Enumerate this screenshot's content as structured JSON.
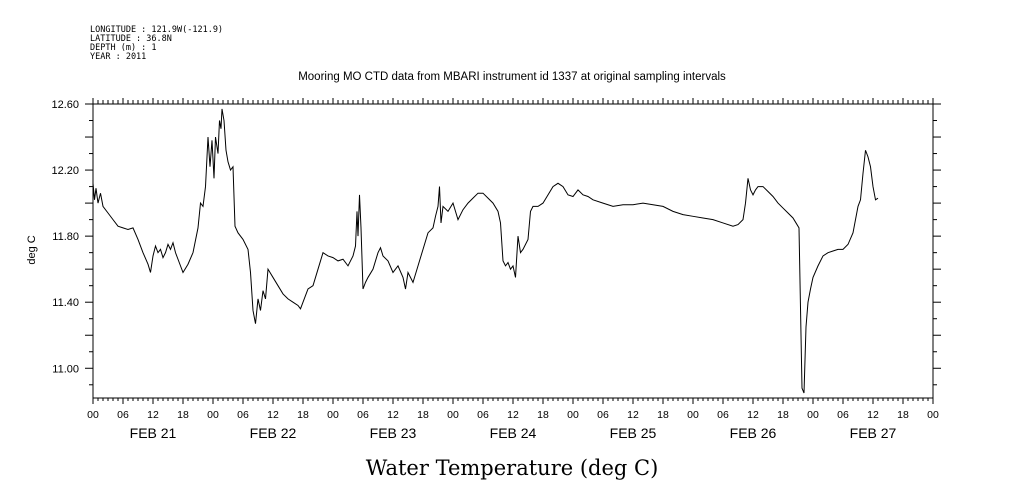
{
  "header_info": [
    "LONGITUDE : 121.9W(-121.9)",
    "LATITUDE : 36.8N",
    "DEPTH (m) : 1",
    "YEAR : 2011"
  ],
  "chart_data": {
    "type": "line",
    "title": "Mooring MO CTD data from MBARI instrument id 1337 at original sampling intervals",
    "xlabel": "Water Temperature (deg C)",
    "ylabel": "deg C",
    "ylim": [
      10.82,
      12.6
    ],
    "xlim_hours": [
      0,
      168
    ],
    "grid": false,
    "yticks": [
      "11.00",
      "11.40",
      "11.80",
      "12.20",
      "12.60"
    ],
    "hour_ticks": [
      "00",
      "06",
      "12",
      "18",
      "00",
      "06",
      "12",
      "18",
      "00",
      "06",
      "12",
      "18",
      "00",
      "06",
      "12",
      "18",
      "00",
      "06",
      "12",
      "18",
      "00",
      "06",
      "12",
      "18",
      "00",
      "06",
      "12",
      "18",
      "00"
    ],
    "day_labels": [
      "FEB 21",
      "FEB 22",
      "FEB 23",
      "FEB 24",
      "FEB 25",
      "FEB 26",
      "FEB 27"
    ],
    "series": [
      {
        "points": [
          [
            0.0,
            12.12
          ],
          [
            0.3,
            12.02
          ],
          [
            0.6,
            12.09
          ],
          [
            1.0,
            12.0
          ],
          [
            1.5,
            12.06
          ],
          [
            2.0,
            11.98
          ],
          [
            3.0,
            11.94
          ],
          [
            4.0,
            11.9
          ],
          [
            5.0,
            11.86
          ],
          [
            6.0,
            11.85
          ],
          [
            7.0,
            11.84
          ],
          [
            8.0,
            11.85
          ],
          [
            9.0,
            11.78
          ],
          [
            10.0,
            11.7
          ],
          [
            11.0,
            11.63
          ],
          [
            11.5,
            11.58
          ],
          [
            12.0,
            11.68
          ],
          [
            12.5,
            11.74
          ],
          [
            13.0,
            11.7
          ],
          [
            13.5,
            11.72
          ],
          [
            14.0,
            11.67
          ],
          [
            14.5,
            11.7
          ],
          [
            15.0,
            11.75
          ],
          [
            15.5,
            11.72
          ],
          [
            16.0,
            11.76
          ],
          [
            16.5,
            11.7
          ],
          [
            17.0,
            11.66
          ],
          [
            17.5,
            11.62
          ],
          [
            18.0,
            11.58
          ],
          [
            19.0,
            11.63
          ],
          [
            20.0,
            11.7
          ],
          [
            21.0,
            11.85
          ],
          [
            21.5,
            12.0
          ],
          [
            22.0,
            11.98
          ],
          [
            22.5,
            12.1
          ],
          [
            23.0,
            12.4
          ],
          [
            23.4,
            12.22
          ],
          [
            23.8,
            12.38
          ],
          [
            24.2,
            12.15
          ],
          [
            24.5,
            12.4
          ],
          [
            25.0,
            12.3
          ],
          [
            25.3,
            12.5
          ],
          [
            25.6,
            12.45
          ],
          [
            25.8,
            12.57
          ],
          [
            26.2,
            12.5
          ],
          [
            26.6,
            12.32
          ],
          [
            27.0,
            12.25
          ],
          [
            27.5,
            12.2
          ],
          [
            28.0,
            12.22
          ],
          [
            28.4,
            11.86
          ],
          [
            29.0,
            11.82
          ],
          [
            30.0,
            11.78
          ],
          [
            31.0,
            11.72
          ],
          [
            31.5,
            11.58
          ],
          [
            32.0,
            11.35
          ],
          [
            32.5,
            11.27
          ],
          [
            33.0,
            11.42
          ],
          [
            33.5,
            11.35
          ],
          [
            34.0,
            11.47
          ],
          [
            34.5,
            11.42
          ],
          [
            35.0,
            11.6
          ],
          [
            36.0,
            11.55
          ],
          [
            37.0,
            11.5
          ],
          [
            38.0,
            11.45
          ],
          [
            39.0,
            11.42
          ],
          [
            40.0,
            11.4
          ],
          [
            41.0,
            11.38
          ],
          [
            41.5,
            11.36
          ],
          [
            42.0,
            11.4
          ],
          [
            43.0,
            11.48
          ],
          [
            44.0,
            11.5
          ],
          [
            45.0,
            11.6
          ],
          [
            46.0,
            11.7
          ],
          [
            47.0,
            11.68
          ],
          [
            48.0,
            11.67
          ],
          [
            49.0,
            11.65
          ],
          [
            50.0,
            11.66
          ],
          [
            51.0,
            11.62
          ],
          [
            52.0,
            11.68
          ],
          [
            52.5,
            11.74
          ],
          [
            52.8,
            11.95
          ],
          [
            53.0,
            11.8
          ],
          [
            53.3,
            12.05
          ],
          [
            53.6,
            11.85
          ],
          [
            54.0,
            11.48
          ],
          [
            54.5,
            11.52
          ],
          [
            55.0,
            11.55
          ],
          [
            56.0,
            11.6
          ],
          [
            57.0,
            11.7
          ],
          [
            57.5,
            11.73
          ],
          [
            58.0,
            11.68
          ],
          [
            59.0,
            11.65
          ],
          [
            60.0,
            11.58
          ],
          [
            61.0,
            11.62
          ],
          [
            62.0,
            11.55
          ],
          [
            62.5,
            11.48
          ],
          [
            63.0,
            11.58
          ],
          [
            64.0,
            11.52
          ],
          [
            65.0,
            11.62
          ],
          [
            66.0,
            11.72
          ],
          [
            67.0,
            11.82
          ],
          [
            68.0,
            11.85
          ],
          [
            68.5,
            11.92
          ],
          [
            69.0,
            11.98
          ],
          [
            69.3,
            12.1
          ],
          [
            69.6,
            11.88
          ],
          [
            70.0,
            11.98
          ],
          [
            71.0,
            11.95
          ],
          [
            72.0,
            12.0
          ],
          [
            72.5,
            11.95
          ],
          [
            73.0,
            11.9
          ],
          [
            74.0,
            11.96
          ],
          [
            75.0,
            12.0
          ],
          [
            76.0,
            12.03
          ],
          [
            77.0,
            12.06
          ],
          [
            78.0,
            12.06
          ],
          [
            79.0,
            12.03
          ],
          [
            80.0,
            12.0
          ],
          [
            81.0,
            11.95
          ],
          [
            81.5,
            11.88
          ],
          [
            82.0,
            11.65
          ],
          [
            82.5,
            11.62
          ],
          [
            83.0,
            11.64
          ],
          [
            83.5,
            11.6
          ],
          [
            84.0,
            11.62
          ],
          [
            84.5,
            11.55
          ],
          [
            85.0,
            11.8
          ],
          [
            85.5,
            11.7
          ],
          [
            86.0,
            11.72
          ],
          [
            87.0,
            11.78
          ],
          [
            87.5,
            11.95
          ],
          [
            88.0,
            11.98
          ],
          [
            89.0,
            11.98
          ],
          [
            90.0,
            12.0
          ],
          [
            91.0,
            12.05
          ],
          [
            92.0,
            12.1
          ],
          [
            93.0,
            12.12
          ],
          [
            94.0,
            12.1
          ],
          [
            95.0,
            12.05
          ],
          [
            96.0,
            12.04
          ],
          [
            97.0,
            12.08
          ],
          [
            98.0,
            12.05
          ],
          [
            99.0,
            12.04
          ],
          [
            100.0,
            12.02
          ],
          [
            102.0,
            12.0
          ],
          [
            104.0,
            11.98
          ],
          [
            106.0,
            11.99
          ],
          [
            108.0,
            11.99
          ],
          [
            110.0,
            12.0
          ],
          [
            112.0,
            11.99
          ],
          [
            114.0,
            11.98
          ],
          [
            116.0,
            11.95
          ],
          [
            118.0,
            11.93
          ],
          [
            120.0,
            11.92
          ],
          [
            122.0,
            11.91
          ],
          [
            124.0,
            11.9
          ],
          [
            126.0,
            11.88
          ],
          [
            128.0,
            11.86
          ],
          [
            129.0,
            11.87
          ],
          [
            130.0,
            11.9
          ],
          [
            130.5,
            12.0
          ],
          [
            131.0,
            12.15
          ],
          [
            131.5,
            12.08
          ],
          [
            132.0,
            12.05
          ],
          [
            132.5,
            12.08
          ],
          [
            133.0,
            12.1
          ],
          [
            134.0,
            12.1
          ],
          [
            135.0,
            12.07
          ],
          [
            136.0,
            12.04
          ],
          [
            137.0,
            12.0
          ],
          [
            138.0,
            11.97
          ],
          [
            139.0,
            11.94
          ],
          [
            140.0,
            11.91
          ],
          [
            140.8,
            11.87
          ],
          [
            141.2,
            11.85
          ],
          [
            141.8,
            10.88
          ],
          [
            142.2,
            10.85
          ],
          [
            142.6,
            11.25
          ],
          [
            143.0,
            11.4
          ],
          [
            143.5,
            11.48
          ],
          [
            144.0,
            11.55
          ],
          [
            145.0,
            11.62
          ],
          [
            146.0,
            11.68
          ],
          [
            147.0,
            11.7
          ],
          [
            148.0,
            11.71
          ],
          [
            149.0,
            11.72
          ],
          [
            150.0,
            11.72
          ],
          [
            151.0,
            11.75
          ],
          [
            152.0,
            11.82
          ],
          [
            153.0,
            11.98
          ],
          [
            153.5,
            12.02
          ],
          [
            154.0,
            12.18
          ],
          [
            154.5,
            12.32
          ],
          [
            155.0,
            12.28
          ],
          [
            155.5,
            12.22
          ],
          [
            156.0,
            12.1
          ],
          [
            156.5,
            12.02
          ],
          [
            157.0,
            12.03
          ]
        ]
      }
    ]
  }
}
